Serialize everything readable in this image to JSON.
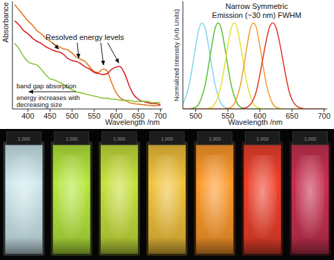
{
  "chart_data": [
    {
      "type": "line",
      "y_label": "Absorbance",
      "x_label": "Wavelength /nm",
      "annotations": [
        {
          "text": "Resolved energy levels"
        },
        {
          "text": "band gap absorption\nenergy increases with\ndecreasing size"
        }
      ],
      "x": [
        370,
        380,
        390,
        400,
        410,
        420,
        430,
        440,
        450,
        460,
        470,
        480,
        490,
        500,
        510,
        520,
        530,
        540,
        550,
        560,
        570,
        580,
        590,
        600,
        610,
        620,
        630,
        640,
        650,
        660,
        670,
        680,
        690,
        700
      ],
      "series": [
        {
          "color": "#e2761e",
          "values": [
            0.97,
            0.92,
            0.87,
            0.82,
            0.78,
            0.73,
            0.7,
            0.66,
            0.63,
            0.6,
            0.58,
            0.56,
            0.55,
            0.52,
            0.48,
            0.46,
            0.44,
            0.39,
            0.35,
            0.34,
            0.37,
            0.35,
            0.24,
            0.15,
            0.1,
            0.08,
            0.06,
            0.05,
            0.045,
            0.04,
            0.035,
            0.03,
            0.03,
            0.03
          ]
        },
        {
          "color": "#d42222",
          "values": [
            0.82,
            0.78,
            0.73,
            0.7,
            0.66,
            0.63,
            0.61,
            0.58,
            0.56,
            0.54,
            0.53,
            0.51,
            0.47,
            0.45,
            0.44,
            0.42,
            0.39,
            0.37,
            0.34,
            0.33,
            0.32,
            0.33,
            0.37,
            0.39,
            0.39,
            0.32,
            0.21,
            0.13,
            0.09,
            0.07,
            0.06,
            0.05,
            0.05,
            0.04
          ]
        },
        {
          "color": "#86c43c",
          "values": [
            0.61,
            0.56,
            0.49,
            0.44,
            0.42,
            0.41,
            0.37,
            0.32,
            0.28,
            0.27,
            0.25,
            0.23,
            0.2,
            0.18,
            0.16,
            0.15,
            0.14,
            0.13,
            0.12,
            0.11,
            0.1,
            0.1,
            0.09,
            0.09,
            0.08,
            0.08,
            0.08,
            0.07,
            0.07,
            0.07,
            0.07,
            0.06,
            0.06,
            0.06
          ]
        }
      ],
      "xlim": [
        365,
        705
      ],
      "xticks": [
        400,
        450,
        500,
        550,
        600,
        650,
        700
      ],
      "ylim": [
        0,
        1
      ],
      "tick_labels": "x"
    },
    {
      "type": "line",
      "y_label": "Normalized Intensity (Arb Units)",
      "x_label": "Wavelength /nm",
      "annotations": [
        {
          "text": "Narrow Symmetric\nEmission (~30 nm) FWHM"
        }
      ],
      "x": [
        480,
        485,
        490,
        495,
        500,
        505,
        510,
        515,
        520,
        525,
        530,
        535,
        540,
        545,
        550,
        555,
        560,
        565,
        570,
        575,
        580,
        585,
        590,
        595,
        600,
        605,
        610,
        615,
        620,
        625,
        630,
        635,
        640,
        645,
        650,
        655,
        660,
        665,
        670,
        675,
        680,
        685,
        690,
        695,
        700
      ],
      "series": [
        {
          "color": "#86d6ec",
          "values": [
            0.06,
            0.15,
            0.29,
            0.5,
            0.73,
            0.93,
            1,
            0.93,
            0.73,
            0.5,
            0.29,
            0.15,
            0.06,
            0.02,
            0.01,
            0,
            0,
            0,
            0,
            0,
            0,
            0,
            0,
            0,
            0,
            0,
            0,
            0,
            0,
            0,
            0,
            0,
            0,
            0,
            0,
            0,
            0,
            0,
            0,
            0,
            0,
            0,
            0,
            0,
            0
          ]
        },
        {
          "color": "#5cc23a",
          "values": [
            0,
            0,
            0,
            0.01,
            0.02,
            0.06,
            0.15,
            0.29,
            0.5,
            0.73,
            0.93,
            1,
            0.93,
            0.73,
            0.5,
            0.29,
            0.15,
            0.06,
            0.02,
            0.01,
            0,
            0,
            0,
            0,
            0,
            0,
            0,
            0,
            0,
            0,
            0,
            0,
            0,
            0,
            0,
            0,
            0,
            0,
            0,
            0,
            0,
            0,
            0,
            0,
            0
          ]
        },
        {
          "color": "#e6e03a",
          "values": [
            0,
            0,
            0,
            0,
            0,
            0,
            0,
            0,
            0.01,
            0.02,
            0.06,
            0.15,
            0.29,
            0.5,
            0.73,
            0.93,
            1,
            0.93,
            0.73,
            0.5,
            0.29,
            0.15,
            0.06,
            0.02,
            0.01,
            0,
            0,
            0,
            0,
            0,
            0,
            0,
            0,
            0,
            0,
            0,
            0,
            0,
            0,
            0,
            0,
            0,
            0,
            0,
            0
          ]
        },
        {
          "color": "#f0a032",
          "values": [
            0,
            0,
            0,
            0,
            0,
            0,
            0,
            0,
            0,
            0,
            0,
            0,
            0,
            0,
            0.01,
            0.02,
            0.06,
            0.15,
            0.29,
            0.5,
            0.73,
            0.93,
            1,
            0.93,
            0.73,
            0.5,
            0.29,
            0.15,
            0.06,
            0.02,
            0.01,
            0,
            0,
            0,
            0,
            0,
            0,
            0,
            0,
            0,
            0,
            0,
            0,
            0,
            0
          ]
        },
        {
          "color": "#e03a2a",
          "values": [
            0,
            0,
            0,
            0,
            0,
            0,
            0,
            0,
            0,
            0,
            0,
            0,
            0,
            0,
            0,
            0,
            0,
            0,
            0,
            0.01,
            0.02,
            0.05,
            0.11,
            0.22,
            0.4,
            0.6,
            0.8,
            0.95,
            1,
            0.95,
            0.8,
            0.6,
            0.4,
            0.22,
            0.11,
            0.05,
            0.02,
            0.01,
            0,
            0,
            0,
            0,
            0,
            0,
            0
          ]
        }
      ],
      "xlim": [
        480,
        705
      ],
      "xticks": [
        500,
        550,
        600,
        650,
        700
      ],
      "ylim": [
        0,
        1.25
      ],
      "tick_labels": "x"
    }
  ],
  "photo": {
    "labels": [
      "1.000",
      "1.000",
      "1.000",
      "1.000",
      "1.000",
      "1.000",
      "1.000"
    ],
    "colors": [
      "#cde8ee",
      "#b6e83c",
      "#c8e03a",
      "#f2c23a",
      "#ff9a2a",
      "#f0402a",
      "#c83050"
    ]
  }
}
